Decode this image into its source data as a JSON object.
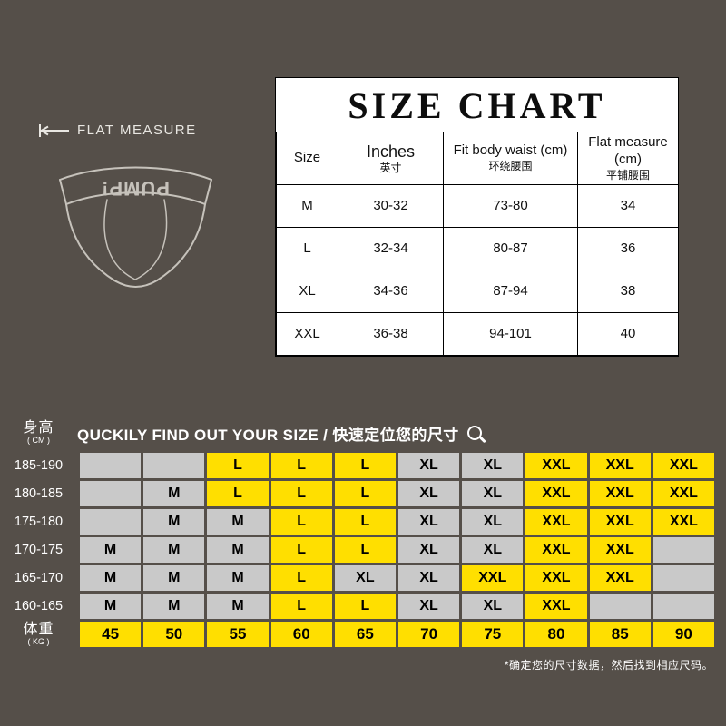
{
  "colors": {
    "bg": "#554f49",
    "panel_white": "#ffffff",
    "line_black": "#000000",
    "cell_yellow": "#ffdf00",
    "cell_gray": "#c9c9c9"
  },
  "illustration": {
    "flat_measure_label": "FLAT  MEASURE",
    "brand": "PUMP!"
  },
  "size_chart": {
    "title": "SIZE CHART",
    "headers": [
      {
        "line1": "Size",
        "line2": ""
      },
      {
        "line1": "Inches",
        "line2": "英寸",
        "big": true
      },
      {
        "line1": "Fit body waist (cm)",
        "line2": "环绕腰围"
      },
      {
        "line1": "Flat measure (cm)",
        "line2": "平铺腰围"
      }
    ],
    "rows": [
      [
        "M",
        "30-32",
        "73-80",
        "34"
      ],
      [
        "L",
        "32-34",
        "80-87",
        "36"
      ],
      [
        "XL",
        "34-36",
        "87-94",
        "38"
      ],
      [
        "XXL",
        "36-38",
        "94-101",
        "40"
      ]
    ]
  },
  "finder": {
    "height_label": "身高",
    "height_unit": "( CM )",
    "weight_label": "体重",
    "weight_unit": "( KG )",
    "title": "QUCKILY FIND OUT YOUR SIZE / 快速定位您的尺寸",
    "heights": [
      "185-190",
      "180-185",
      "175-180",
      "170-175",
      "165-170",
      "160-165"
    ],
    "weights": [
      "45",
      "50",
      "55",
      "60",
      "65",
      "70",
      "75",
      "80",
      "85",
      "90"
    ],
    "matrix": [
      [
        "",
        "",
        "L",
        "L",
        "L",
        "XL",
        "XL",
        "XXL",
        "XXL",
        "XXL"
      ],
      [
        "",
        "M",
        "L",
        "L",
        "L",
        "XL",
        "XL",
        "XXL",
        "XXL",
        "XXL"
      ],
      [
        "",
        "M",
        "M",
        "L",
        "L",
        "XL",
        "XL",
        "XXL",
        "XXL",
        "XXL"
      ],
      [
        "M",
        "M",
        "M",
        "L",
        "L",
        "XL",
        "XL",
        "XXL",
        "XXL",
        ""
      ],
      [
        "M",
        "M",
        "M",
        "L",
        "XL",
        "XL",
        "XXL",
        "XXL",
        "XXL",
        ""
      ],
      [
        "M",
        "M",
        "M",
        "L",
        "L",
        "XL",
        "XL",
        "XXL",
        "",
        ""
      ]
    ],
    "footnote": "*确定您的尺寸数据，然后找到相应尺码。"
  }
}
